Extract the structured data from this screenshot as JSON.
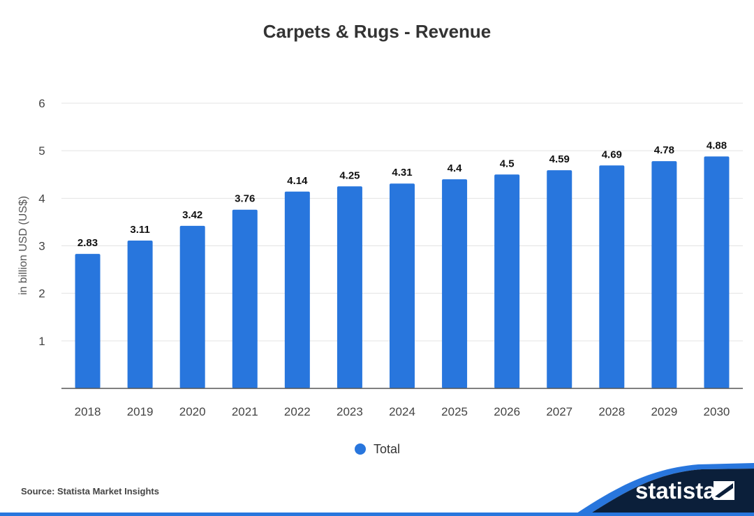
{
  "title": "Carpets & Rugs - Revenue",
  "source": "Source: Statista Market Insights",
  "brand": "statista",
  "colors": {
    "bar": "#2876dd",
    "logo_bg": "#0b1f3a",
    "logo_accent": "#2876dd"
  },
  "chart_data": {
    "type": "bar",
    "title": "Carpets & Rugs - Revenue",
    "xlabel": "",
    "ylabel": "in billion USD (US$)",
    "ylim": [
      0,
      6
    ],
    "yticks": [
      1,
      2,
      3,
      4,
      5,
      6
    ],
    "grid": true,
    "legend_position": "bottom-center",
    "categories": [
      "2018",
      "2019",
      "2020",
      "2021",
      "2022",
      "2023",
      "2024",
      "2025",
      "2026",
      "2027",
      "2028",
      "2029",
      "2030"
    ],
    "series": [
      {
        "name": "Total",
        "values": [
          2.83,
          3.11,
          3.42,
          3.76,
          4.14,
          4.25,
          4.31,
          4.4,
          4.5,
          4.59,
          4.69,
          4.78,
          4.88
        ]
      }
    ]
  }
}
